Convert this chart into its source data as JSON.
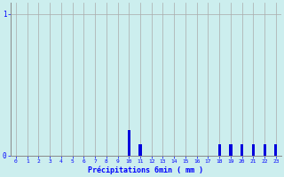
{
  "title": "",
  "xlabel": "Précipitations 6min ( mm )",
  "ylabel": "",
  "background_color": "#cceeee",
  "bar_color": "#0000dd",
  "grid_color": "#aaaaaa",
  "xlim": [
    -0.5,
    23.5
  ],
  "ylim": [
    0,
    1.08
  ],
  "yticks": [
    0,
    1
  ],
  "xticks": [
    0,
    1,
    2,
    3,
    4,
    5,
    6,
    7,
    8,
    9,
    10,
    11,
    12,
    13,
    14,
    15,
    16,
    17,
    18,
    19,
    20,
    21,
    22,
    23
  ],
  "hours": [
    0,
    1,
    2,
    3,
    4,
    5,
    6,
    7,
    8,
    9,
    10,
    11,
    12,
    13,
    14,
    15,
    16,
    17,
    18,
    19,
    20,
    21,
    22,
    23
  ],
  "values": [
    0,
    0,
    0,
    0,
    0,
    0,
    0,
    0,
    0,
    0,
    0.18,
    0.08,
    0,
    0,
    0,
    0,
    0,
    0,
    0.08,
    0.08,
    0.08,
    0.08,
    0.08,
    0.08
  ]
}
